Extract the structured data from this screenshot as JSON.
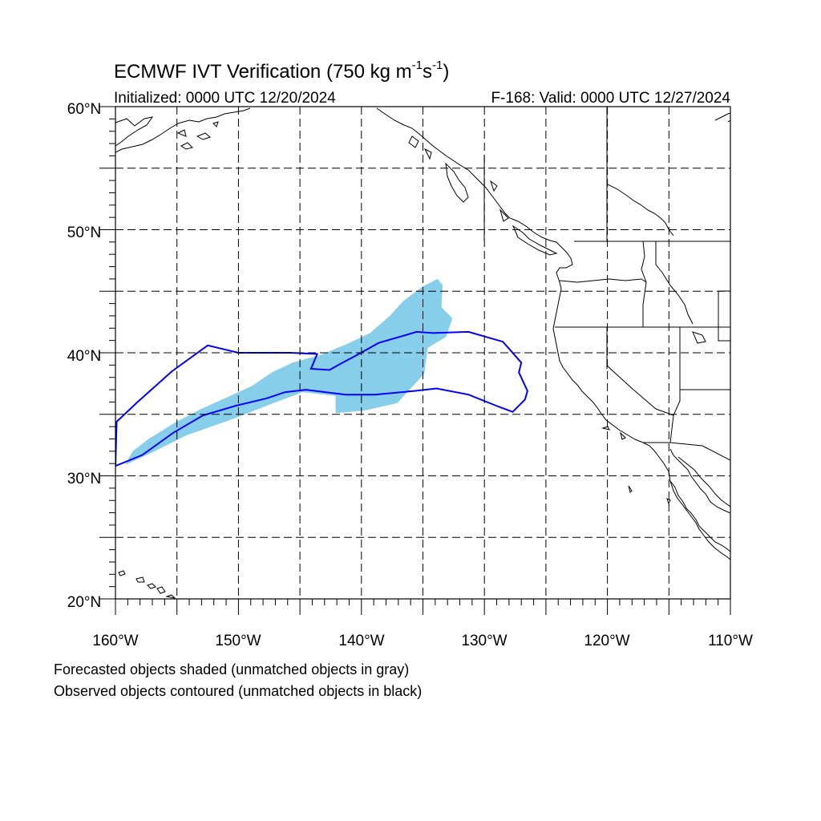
{
  "title": {
    "main_prefix": "ECMWF IVT Verification (750 kg m",
    "exp1": "-1",
    "mid": "s",
    "exp2": "-1",
    "suffix": ")"
  },
  "initialized": "Initialized: 0000 UTC 12/20/2024",
  "valid": "F-168: Valid: 0000 UTC 12/27/2024",
  "lat_labels": [
    "60°N",
    "50°N",
    "40°N",
    "30°N",
    "20°N"
  ],
  "lon_labels": [
    "160°W",
    "150°W",
    "140°W",
    "130°W",
    "120°W",
    "110°W"
  ],
  "footer": {
    "line1": "Forecasted objects shaded (unmatched objects in gray)",
    "line2": "Observed objects contoured (unmatched objects in black)"
  },
  "colors": {
    "forecast_fill": "#87ceeb",
    "observed_contour": "#0000ff",
    "coastline": "#000000",
    "grid": "#000000"
  },
  "chart_data": {
    "type": "map",
    "projection": "cylindrical equidistant",
    "lon_range": [
      -160,
      -110
    ],
    "lat_range": [
      20,
      60
    ],
    "grid_spacing_deg": 5,
    "forecast_object_outline": [
      [
        -159.2,
        30.9
      ],
      [
        -158.6,
        32.0
      ],
      [
        -157.3,
        33.0
      ],
      [
        -155.2,
        34.3
      ],
      [
        -153.1,
        35.4
      ],
      [
        -151.1,
        36.3
      ],
      [
        -148.9,
        37.3
      ],
      [
        -147.3,
        38.4
      ],
      [
        -145.6,
        39.2
      ],
      [
        -143.4,
        39.8
      ],
      [
        -141.2,
        40.7
      ],
      [
        -139.3,
        41.6
      ],
      [
        -137.7,
        43.0
      ],
      [
        -136.6,
        44.2
      ],
      [
        -135.0,
        45.4
      ],
      [
        -133.8,
        46.0
      ],
      [
        -133.4,
        45.5
      ],
      [
        -133.5,
        43.7
      ],
      [
        -132.6,
        42.8
      ],
      [
        -133.1,
        41.3
      ],
      [
        -134.6,
        40.4
      ],
      [
        -134.9,
        38.3
      ],
      [
        -135.9,
        37.2
      ],
      [
        -137.1,
        35.9
      ],
      [
        -139.8,
        35.3
      ],
      [
        -142.1,
        35.1
      ],
      [
        -142.1,
        36.5
      ],
      [
        -144.8,
        36.8
      ],
      [
        -147.7,
        35.7
      ],
      [
        -150.5,
        34.6
      ],
      [
        -154.2,
        33.3
      ],
      [
        -157.0,
        31.9
      ]
    ],
    "observed_object_outline": [
      [
        -160.0,
        30.8
      ],
      [
        -157.8,
        31.7
      ],
      [
        -155.3,
        33.5
      ],
      [
        -152.9,
        34.9
      ],
      [
        -150.2,
        35.7
      ],
      [
        -147.7,
        36.3
      ],
      [
        -146.2,
        36.8
      ],
      [
        -144.5,
        37.0
      ],
      [
        -141.3,
        36.6
      ],
      [
        -138.9,
        36.6
      ],
      [
        -135.7,
        36.9
      ],
      [
        -133.9,
        37.1
      ],
      [
        -131.3,
        36.6
      ],
      [
        -128.8,
        35.6
      ],
      [
        -127.7,
        35.2
      ],
      [
        -126.7,
        36.2
      ],
      [
        -126.5,
        36.9
      ],
      [
        -127.2,
        38.4
      ],
      [
        -127.0,
        39.2
      ],
      [
        -128.5,
        40.9
      ],
      [
        -131.3,
        41.7
      ],
      [
        -134.2,
        41.6
      ],
      [
        -135.5,
        41.7
      ],
      [
        -138.6,
        40.8
      ],
      [
        -140.4,
        39.8
      ],
      [
        -141.9,
        39.0
      ],
      [
        -142.6,
        38.6
      ],
      [
        -144.1,
        38.7
      ],
      [
        -143.6,
        39.9
      ],
      [
        -145.8,
        40.0
      ],
      [
        -150.0,
        40.0
      ],
      [
        -152.5,
        40.6
      ],
      [
        -155.4,
        38.5
      ],
      [
        -158.2,
        36.0
      ],
      [
        -159.9,
        34.4
      ]
    ]
  }
}
